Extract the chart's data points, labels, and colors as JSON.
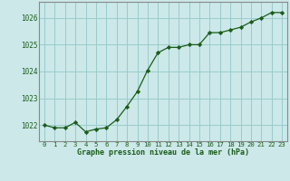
{
  "x": [
    0,
    1,
    2,
    3,
    4,
    5,
    6,
    7,
    8,
    9,
    10,
    11,
    12,
    13,
    14,
    15,
    16,
    17,
    18,
    19,
    20,
    21,
    22,
    23
  ],
  "y": [
    1022.0,
    1021.9,
    1021.9,
    1022.1,
    1021.75,
    1021.85,
    1021.9,
    1022.2,
    1022.7,
    1023.25,
    1024.05,
    1024.7,
    1024.9,
    1024.9,
    1025.0,
    1025.0,
    1025.45,
    1025.45,
    1025.55,
    1025.65,
    1025.85,
    1026.0,
    1026.2,
    1026.2
  ],
  "background_color": "#cce8e8",
  "line_color": "#1a5c1a",
  "marker_color": "#1a5c1a",
  "grid_color": "#99cccc",
  "xlabel": "Graphe pression niveau de la mer (hPa)",
  "xlabel_color": "#1a5c1a",
  "tick_color": "#1a5c1a",
  "spine_color": "#888888",
  "ylim": [
    1021.4,
    1026.6
  ],
  "xlim": [
    -0.5,
    23.5
  ],
  "yticks": [
    1022,
    1023,
    1024,
    1025,
    1026
  ],
  "xticks": [
    0,
    1,
    2,
    3,
    4,
    5,
    6,
    7,
    8,
    9,
    10,
    11,
    12,
    13,
    14,
    15,
    16,
    17,
    18,
    19,
    20,
    21,
    22,
    23
  ]
}
